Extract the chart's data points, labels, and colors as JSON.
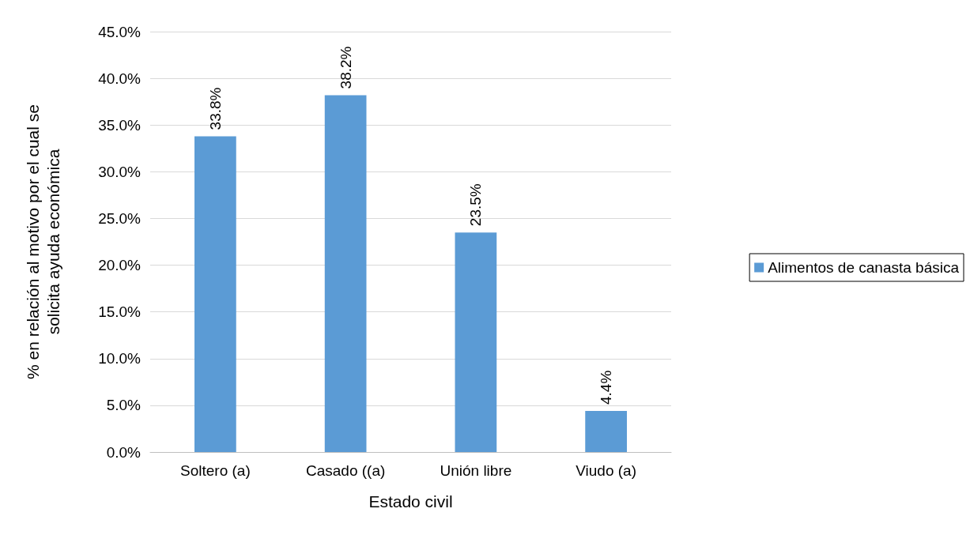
{
  "chart_data": {
    "type": "bar",
    "xlabel": "Estado civil",
    "ylabel": "% en relación al motivo por el cual se\nsolicita ayuda económica",
    "categories": [
      "Soltero (a)",
      "Casado ((a)",
      "Unión libre",
      "Viudo (a)"
    ],
    "series": [
      {
        "name": "Alimentos de canasta básica",
        "color": "#5b9bd5",
        "values": [
          33.8,
          38.2,
          23.5,
          4.4
        ],
        "value_labels": [
          "33.8%",
          "38.2%",
          "23.5%",
          "4.4%"
        ]
      }
    ],
    "ylim": [
      0,
      45
    ],
    "yticks": [
      {
        "value": 0,
        "label": "0.0%"
      },
      {
        "value": 5,
        "label": "5.0%"
      },
      {
        "value": 10,
        "label": "10.0%"
      },
      {
        "value": 15,
        "label": "15.0%"
      },
      {
        "value": 20,
        "label": "20.0%"
      },
      {
        "value": 25,
        "label": "25.0%"
      },
      {
        "value": 30,
        "label": "30.0%"
      },
      {
        "value": 35,
        "label": "35.0%"
      },
      {
        "value": 40,
        "label": "40.0%"
      },
      {
        "value": 45,
        "label": "45.0%"
      }
    ],
    "grid": "y",
    "legend": "right"
  }
}
